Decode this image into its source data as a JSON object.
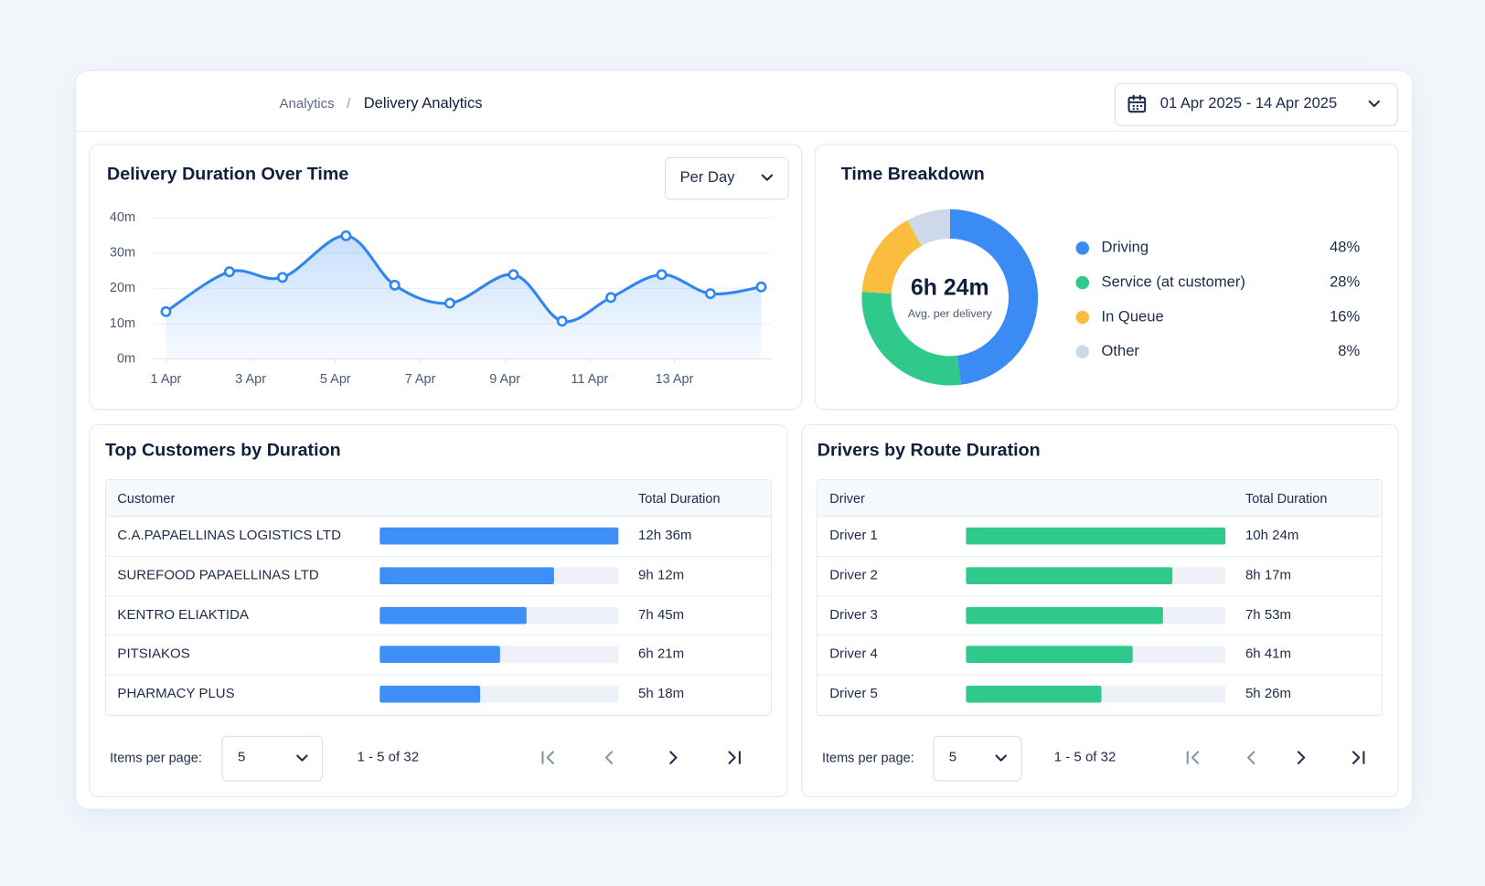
{
  "header": {
    "breadcrumb": [
      "Analytics",
      "Delivery Analytics"
    ],
    "separator": "/",
    "date_range": "01 Apr 2025 - 14 Apr 2025"
  },
  "chart_data": [
    {
      "type": "line",
      "title": "Delivery Duration Over Time",
      "period": "Per Day",
      "color": "#2f86f0",
      "x": [
        1,
        2.5,
        3.75,
        5.25,
        6.4,
        7.7,
        9.2,
        10.35,
        11.5,
        12.7,
        13.85,
        15.05
      ],
      "values": [
        13.4,
        24.7,
        23.1,
        34.9,
        20.9,
        15.8,
        23.9,
        10.7,
        17.4,
        23.9,
        18.5,
        20.4
      ],
      "xlim": [
        0.66,
        15.3
      ],
      "xticks": [
        {
          "value": 1,
          "label": "1 Apr"
        },
        {
          "value": 3,
          "label": "3 Apr"
        },
        {
          "value": 5,
          "label": "5 Apr"
        },
        {
          "value": 7,
          "label": "7 Apr"
        },
        {
          "value": 9,
          "label": "9 Apr"
        },
        {
          "value": 11,
          "label": "11 Apr"
        },
        {
          "value": 13,
          "label": "13 Apr"
        }
      ],
      "ylim": [
        0,
        40
      ],
      "yticks": [
        {
          "value": 0,
          "label": "0m"
        },
        {
          "value": 10,
          "label": "10m"
        },
        {
          "value": 20,
          "label": "20m"
        },
        {
          "value": 30,
          "label": "30m"
        },
        {
          "value": 40,
          "label": "40m"
        }
      ],
      "grid": true
    },
    {
      "type": "pie",
      "title": "Time Breakdown",
      "donut": true,
      "center_value": "6h 24m",
      "center_label": "Avg. per delivery",
      "categories": [
        "Driving",
        "Service (at customer)",
        "In Queue",
        "Other"
      ],
      "values": [
        48,
        28,
        16,
        8
      ],
      "value_labels": [
        "48%",
        "28%",
        "16%",
        "8%"
      ],
      "colors": [
        "#3a8cf4",
        "#2ec98b",
        "#fbbd3d",
        "#cdd9e8"
      ]
    }
  ],
  "customers": {
    "title": "Top Customers by Duration",
    "columns": [
      "Customer",
      "Total Duration"
    ],
    "color": "#3d8ef5",
    "rows": [
      {
        "name": "C.A.PAPAELLINAS LOGISTICS LTD",
        "duration": "12h 36m",
        "minutes": 756
      },
      {
        "name": "SUREFOOD PAPAELLINAS LTD",
        "duration": "9h 12m",
        "minutes": 552
      },
      {
        "name": "KENTRO ELIAKTIDA",
        "duration": "7h 45m",
        "minutes": 465
      },
      {
        "name": "PITSIAKOS",
        "duration": "6h 21m",
        "minutes": 381
      },
      {
        "name": "PHARMACY PLUS",
        "duration": "5h 18m",
        "minutes": 318
      }
    ],
    "pagination": {
      "label": "Items per page:",
      "page_size": 5,
      "range": "1 - 5 of 32"
    }
  },
  "drivers": {
    "title": "Drivers by Route Duration",
    "columns": [
      "Driver",
      "Total Duration"
    ],
    "color": "#2ec98b",
    "rows": [
      {
        "name": "Driver 1",
        "duration": "10h 24m",
        "minutes": 624
      },
      {
        "name": "Driver 2",
        "duration": "8h 17m",
        "minutes": 497
      },
      {
        "name": "Driver 3",
        "duration": "7h 53m",
        "minutes": 473
      },
      {
        "name": "Driver 4",
        "duration": "6h 41m",
        "minutes": 401
      },
      {
        "name": "Driver 5",
        "duration": "5h 26m",
        "minutes": 326
      }
    ],
    "pagination": {
      "label": "Items per page:",
      "page_size": 5,
      "range": "1 - 5 of 32"
    }
  }
}
